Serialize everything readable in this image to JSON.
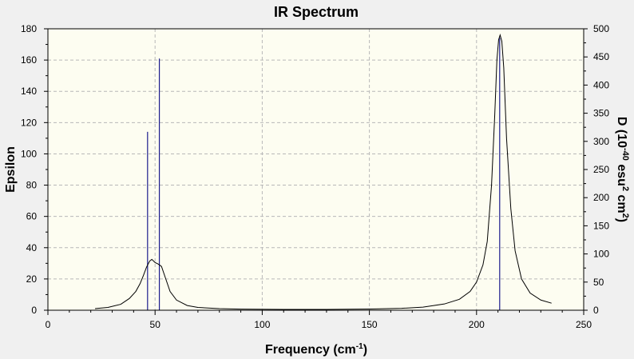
{
  "chart_data": {
    "type": "line",
    "title": "IR Spectrum",
    "xlabel": "Frequency (cm",
    "xlabel_sup": "-1",
    "xlabel_end": ")",
    "ylabel": "Epsilon",
    "y2label_parts": [
      "D (10",
      "-40",
      " esu",
      "2",
      " cm",
      "2",
      ")"
    ],
    "xlim": [
      0,
      250
    ],
    "ylim": [
      0,
      180
    ],
    "y2lim": [
      0,
      500
    ],
    "x_ticks": [
      0,
      50,
      100,
      150,
      200,
      250
    ],
    "y_ticks": [
      0,
      20,
      40,
      60,
      80,
      100,
      120,
      140,
      160,
      180
    ],
    "y2_ticks": [
      0,
      50,
      100,
      150,
      200,
      250,
      300,
      350,
      400,
      450,
      500
    ],
    "grid": true,
    "colors": {
      "background": "#fdfdf1",
      "spectrum": "#000000",
      "sticks": "#1c1c8e"
    },
    "series": [
      {
        "type": "line",
        "x": [
          22,
          28,
          34,
          38,
          41,
          43,
          44.5,
          46,
          47.5,
          48.5,
          50,
          51.5,
          53,
          55,
          57,
          60,
          65,
          70,
          80,
          90,
          110,
          130,
          150,
          165,
          175,
          185,
          192,
          197,
          200,
          203,
          205,
          207,
          208.5,
          209.5,
          210.3,
          211,
          211.8,
          212.7,
          214,
          216,
          218,
          221,
          225,
          230,
          235
        ],
        "y": [
          1,
          1.8,
          3.8,
          7.5,
          12,
          17,
          22,
          27.5,
          31.5,
          32.5,
          30.5,
          29.5,
          28,
          20,
          12,
          6.5,
          3,
          1.8,
          1,
          0.7,
          0.5,
          0.5,
          0.8,
          1.2,
          2,
          4,
          7,
          12,
          18,
          29,
          44,
          80,
          125,
          160,
          173,
          176,
          172,
          155,
          110,
          65,
          38,
          20,
          11,
          6.5,
          4.5
        ]
      },
      {
        "type": "sticks",
        "y_axis": "right",
        "x": [
          46.5,
          52,
          210.8
        ],
        "y": [
          317,
          447,
          484
        ]
      }
    ]
  }
}
